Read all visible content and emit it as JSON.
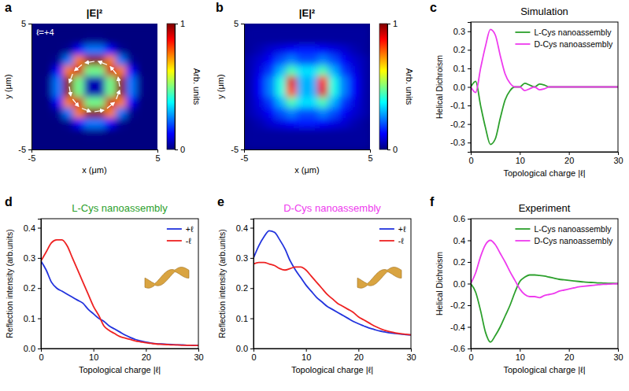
{
  "chart_data": [
    {
      "type": "heatmap",
      "panel": "a",
      "title": "|E|²",
      "annotation": "ℓ=+4",
      "x_label": "x (μm)",
      "y_label": "y (μm)",
      "xlim": [
        -5,
        5
      ],
      "xticks": [
        -5,
        5
      ],
      "ylim": [
        -5,
        5
      ],
      "yticks": [
        -5,
        5
      ],
      "cells": [
        [
          0,
          0,
          0,
          0,
          0,
          0,
          0,
          0,
          0,
          0,
          0,
          0
        ],
        [
          0,
          0,
          0,
          0,
          0,
          0.01,
          0.01,
          0,
          0,
          0,
          0,
          0
        ],
        [
          0,
          0,
          0,
          0.02,
          0.12,
          0.24,
          0.24,
          0.12,
          0.02,
          0,
          0,
          0
        ],
        [
          0,
          0,
          0.02,
          0.24,
          0.75,
          0.98,
          0.98,
          0.75,
          0.24,
          0.02,
          0,
          0
        ],
        [
          0,
          0,
          0.12,
          0.75,
          0.92,
          0.49,
          0.49,
          0.92,
          0.75,
          0.12,
          0,
          0
        ],
        [
          0,
          0.01,
          0.24,
          0.98,
          0.49,
          0.05,
          0.05,
          0.49,
          0.98,
          0.24,
          0.01,
          0
        ],
        [
          0,
          0.01,
          0.24,
          0.98,
          0.49,
          0.05,
          0.05,
          0.49,
          0.98,
          0.24,
          0.01,
          0
        ],
        [
          0,
          0,
          0.12,
          0.75,
          0.92,
          0.49,
          0.49,
          0.92,
          0.75,
          0.12,
          0,
          0
        ],
        [
          0,
          0,
          0.02,
          0.24,
          0.75,
          0.98,
          0.98,
          0.75,
          0.24,
          0.02,
          0,
          0
        ],
        [
          0,
          0,
          0,
          0.02,
          0.12,
          0.24,
          0.24,
          0.12,
          0.02,
          0,
          0,
          0
        ],
        [
          0,
          0,
          0,
          0,
          0,
          0.01,
          0.01,
          0,
          0,
          0,
          0,
          0
        ],
        [
          0,
          0,
          0,
          0,
          0,
          0,
          0,
          0,
          0,
          0,
          0,
          0
        ]
      ],
      "color_range": [
        0,
        1
      ],
      "color_ticks": [
        0,
        1
      ],
      "color_label": "Arb. units"
    },
    {
      "type": "heatmap",
      "panel": "b",
      "title": "|E|²",
      "x_label": "x (μm)",
      "y_label": "y (μm)",
      "xlim": [
        -5,
        5
      ],
      "xticks": [
        -5,
        5
      ],
      "ylim": [
        -5,
        5
      ],
      "yticks": [
        -5,
        5
      ],
      "cells": [
        [
          0.03,
          0.03,
          0.03,
          0.03,
          0.03,
          0.03,
          0.03,
          0.03,
          0.03,
          0.03,
          0.03,
          0.03
        ],
        [
          0.03,
          0.03,
          0.03,
          0.03,
          0.03,
          0.03,
          0.03,
          0.03,
          0.03,
          0.03,
          0.03,
          0.03
        ],
        [
          0.03,
          0.05,
          0.08,
          0.1,
          0.12,
          0.15,
          0.15,
          0.12,
          0.1,
          0.08,
          0.05,
          0.03
        ],
        [
          0.05,
          0.08,
          0.12,
          0.2,
          0.25,
          0.2,
          0.2,
          0.25,
          0.2,
          0.12,
          0.08,
          0.05
        ],
        [
          0.05,
          0.1,
          0.18,
          0.3,
          0.45,
          0.35,
          0.35,
          0.45,
          0.3,
          0.18,
          0.1,
          0.05
        ],
        [
          0.05,
          0.12,
          0.25,
          0.4,
          0.9,
          0.3,
          0.3,
          0.85,
          0.4,
          0.25,
          0.12,
          0.05
        ],
        [
          0.05,
          0.12,
          0.25,
          0.4,
          0.8,
          0.3,
          0.3,
          0.9,
          0.4,
          0.25,
          0.12,
          0.05
        ],
        [
          0.05,
          0.1,
          0.18,
          0.3,
          0.45,
          0.35,
          0.35,
          0.45,
          0.3,
          0.18,
          0.1,
          0.05
        ],
        [
          0.05,
          0.08,
          0.12,
          0.2,
          0.25,
          0.2,
          0.2,
          0.25,
          0.2,
          0.12,
          0.08,
          0.05
        ],
        [
          0.03,
          0.05,
          0.08,
          0.1,
          0.12,
          0.15,
          0.15,
          0.12,
          0.1,
          0.08,
          0.05,
          0.03
        ],
        [
          0.03,
          0.03,
          0.03,
          0.03,
          0.03,
          0.03,
          0.03,
          0.03,
          0.03,
          0.03,
          0.03,
          0.03
        ],
        [
          0.03,
          0.03,
          0.03,
          0.03,
          0.03,
          0.03,
          0.03,
          0.03,
          0.03,
          0.03,
          0.03,
          0.03
        ]
      ],
      "color_range": [
        0,
        1
      ],
      "color_ticks": [
        0,
        1
      ],
      "color_label": "Arb. units"
    },
    {
      "type": "line",
      "panel": "c",
      "title": "Simulation",
      "x_label": "Topological charge |ℓ|",
      "y_label": "Helical Dichroism",
      "x": [
        0,
        1,
        2,
        3,
        4,
        5,
        6,
        7,
        8,
        9,
        10,
        11,
        12,
        13,
        14,
        15,
        16,
        17,
        18,
        19,
        20,
        21,
        22,
        23,
        24,
        25,
        26,
        27,
        28,
        29,
        30
      ],
      "xlim": [
        0,
        30
      ],
      "xticks": [
        0,
        10,
        20,
        30
      ],
      "ylim": [
        -0.35,
        0.35
      ],
      "yticks": [
        -0.3,
        -0.2,
        -0.1,
        {
          "value": 0,
          "label": "0.0"
        },
        0.1,
        0.2,
        0.3
      ],
      "legend": "top-right",
      "series": [
        {
          "name": "L-Cys nanoassembly",
          "color": "#2ca02c",
          "values": [
            0,
            0.03,
            -0.1,
            -0.22,
            -0.31,
            -0.28,
            -0.17,
            -0.07,
            -0.02,
            0,
            0,
            0.02,
            0.01,
            0,
            0.015,
            0.01,
            0,
            0,
            0,
            0,
            0,
            0,
            0,
            0,
            0,
            0,
            0,
            0,
            0,
            0,
            0
          ]
        },
        {
          "name": "D-Cys nanoassembly",
          "color": "#ee3bee",
          "values": [
            0,
            -0.03,
            0.1,
            0.22,
            0.31,
            0.28,
            0.17,
            0.07,
            0.02,
            0,
            0,
            -0.02,
            -0.01,
            0,
            -0.015,
            -0.01,
            0,
            0,
            0,
            0,
            0,
            0,
            0,
            0,
            0,
            0,
            0,
            0,
            0,
            0,
            0
          ]
        }
      ]
    },
    {
      "type": "line",
      "panel": "d",
      "title": "L-Cys nanoassembly",
      "x_label": "Topological charge |ℓ|",
      "y_label": "Reflection intensity (arb.units)",
      "x": [
        0,
        1,
        2,
        3,
        4,
        5,
        6,
        7,
        8,
        9,
        10,
        11,
        12,
        13,
        14,
        15,
        16,
        17,
        18,
        19,
        20,
        21,
        22,
        23,
        24,
        25,
        26,
        27,
        28,
        29,
        30
      ],
      "xlim": [
        0,
        30
      ],
      "xticks": [
        0,
        10,
        20,
        30
      ],
      "ylim": [
        0,
        0.43
      ],
      "yticks": [
        {
          "value": 0,
          "label": "0.0"
        },
        0.1,
        0.2,
        0.3,
        0.4
      ],
      "legend": "top-right",
      "series": [
        {
          "name": "+ℓ",
          "color": "#2233dd",
          "values": [
            0.29,
            0.26,
            0.22,
            0.2,
            0.19,
            0.18,
            0.17,
            0.16,
            0.15,
            0.13,
            0.115,
            0.1,
            0.09,
            0.075,
            0.065,
            0.055,
            0.045,
            0.037,
            0.03,
            0.025,
            0.021,
            0.018,
            0.016,
            0.015,
            0.014,
            0.013,
            0.012,
            0.012,
            0.011,
            0.011,
            0.01
          ]
        },
        {
          "name": "-ℓ",
          "color": "#ee2222",
          "values": [
            0.29,
            0.32,
            0.35,
            0.36,
            0.36,
            0.34,
            0.3,
            0.26,
            0.22,
            0.18,
            0.14,
            0.11,
            0.075,
            0.06,
            0.05,
            0.04,
            0.035,
            0.03,
            0.025,
            0.022,
            0.019,
            0.017,
            0.015,
            0.014,
            0.013,
            0.012,
            0.012,
            0.011,
            0.011,
            0.01,
            0.01
          ]
        }
      ]
    },
    {
      "type": "line",
      "panel": "e",
      "title": "D-Cys nanoassembly",
      "x_label": "Topological charge |ℓ|",
      "y_label": "Reflection intensity (arb.units)",
      "x": [
        0,
        1,
        2,
        3,
        4,
        5,
        6,
        7,
        8,
        9,
        10,
        11,
        12,
        13,
        14,
        15,
        16,
        17,
        18,
        19,
        20,
        21,
        22,
        23,
        24,
        25,
        26,
        27,
        28,
        29,
        30
      ],
      "xlim": [
        0,
        30
      ],
      "xticks": [
        0,
        10,
        20,
        30
      ],
      "ylim": [
        0,
        0.43
      ],
      "yticks": [
        {
          "value": 0,
          "label": "0.0"
        },
        0.1,
        0.2,
        0.3,
        0.4
      ],
      "legend": "top-right",
      "series": [
        {
          "name": "+ℓ",
          "color": "#2233dd",
          "values": [
            0.3,
            0.34,
            0.37,
            0.39,
            0.385,
            0.36,
            0.33,
            0.29,
            0.26,
            0.235,
            0.21,
            0.19,
            0.17,
            0.155,
            0.14,
            0.13,
            0.12,
            0.11,
            0.1,
            0.09,
            0.082,
            0.075,
            0.068,
            0.063,
            0.058,
            0.055,
            0.052,
            0.05,
            0.048,
            0.046,
            0.045
          ]
        },
        {
          "name": "-ℓ",
          "color": "#ee2222",
          "values": [
            0.28,
            0.285,
            0.285,
            0.28,
            0.275,
            0.265,
            0.26,
            0.265,
            0.27,
            0.27,
            0.26,
            0.24,
            0.22,
            0.2,
            0.18,
            0.165,
            0.15,
            0.14,
            0.13,
            0.12,
            0.105,
            0.095,
            0.085,
            0.075,
            0.067,
            0.06,
            0.056,
            0.052,
            0.049,
            0.047,
            0.045
          ]
        }
      ]
    },
    {
      "type": "line",
      "panel": "f",
      "title": "Experiment",
      "x_label": "Topological charge |ℓ|",
      "y_label": "Helical Dichroism",
      "x": [
        0,
        1,
        2,
        3,
        4,
        5,
        6,
        7,
        8,
        9,
        10,
        11,
        12,
        13,
        14,
        15,
        16,
        17,
        18,
        19,
        20,
        21,
        22,
        23,
        24,
        25,
        26,
        27,
        28,
        29,
        30
      ],
      "xlim": [
        0,
        30
      ],
      "xticks": [
        0,
        10,
        20,
        30
      ],
      "ylim": [
        -0.6,
        0.6
      ],
      "yticks": [
        -0.6,
        -0.4,
        -0.2,
        {
          "value": 0,
          "label": "0.0"
        },
        0.2,
        0.4,
        0.6
      ],
      "legend": "top-right",
      "series": [
        {
          "name": "L-Cys nanoassembly",
          "color": "#2ca02c",
          "values": [
            0,
            -0.08,
            -0.25,
            -0.45,
            -0.54,
            -0.48,
            -0.4,
            -0.3,
            -0.2,
            -0.08,
            0.02,
            0.06,
            0.08,
            0.08,
            0.075,
            0.07,
            0.06,
            0.05,
            0.04,
            0.035,
            0.03,
            0.025,
            0.02,
            0.015,
            0.012,
            0.01,
            0.007,
            0.005,
            0.003,
            0.002,
            0
          ]
        },
        {
          "name": "D-Cys nanoassembly",
          "color": "#ee3bee",
          "values": [
            0,
            0.1,
            0.25,
            0.36,
            0.4,
            0.36,
            0.28,
            0.2,
            0.11,
            0.03,
            -0.05,
            -0.1,
            -0.12,
            -0.12,
            -0.13,
            -0.11,
            -0.1,
            -0.09,
            -0.07,
            -0.06,
            -0.05,
            -0.04,
            -0.03,
            -0.025,
            -0.02,
            -0.015,
            -0.01,
            -0.007,
            -0.005,
            -0.003,
            0
          ]
        }
      ]
    }
  ]
}
